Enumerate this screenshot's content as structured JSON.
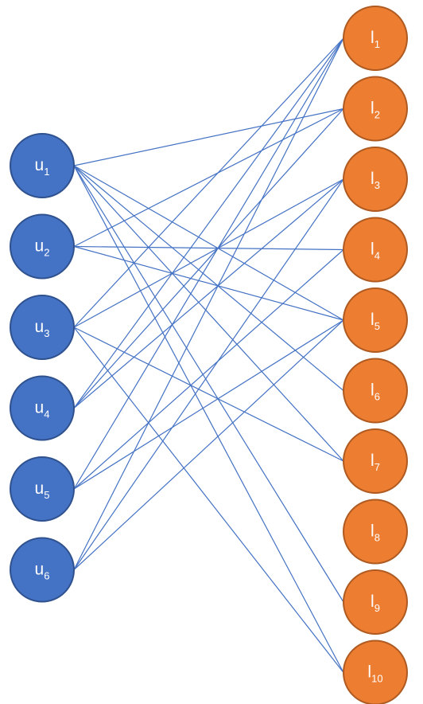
{
  "diagram": {
    "users": [
      {
        "id": "u1",
        "base": "u",
        "sub": "1"
      },
      {
        "id": "u2",
        "base": "u",
        "sub": "2"
      },
      {
        "id": "u3",
        "base": "u",
        "sub": "3"
      },
      {
        "id": "u4",
        "base": "u",
        "sub": "4"
      },
      {
        "id": "u5",
        "base": "u",
        "sub": "5"
      },
      {
        "id": "u6",
        "base": "u",
        "sub": "6"
      }
    ],
    "items": [
      {
        "id": "l1",
        "base": "l",
        "sub": "1"
      },
      {
        "id": "l2",
        "base": "l",
        "sub": "2"
      },
      {
        "id": "l3",
        "base": "l",
        "sub": "3"
      },
      {
        "id": "l4",
        "base": "l",
        "sub": "4"
      },
      {
        "id": "l5",
        "base": "l",
        "sub": "5"
      },
      {
        "id": "l6",
        "base": "l",
        "sub": "6"
      },
      {
        "id": "l7",
        "base": "l",
        "sub": "7"
      },
      {
        "id": "l8",
        "base": "l",
        "sub": "8"
      },
      {
        "id": "l9",
        "base": "l",
        "sub": "9"
      },
      {
        "id": "l10",
        "base": "l",
        "sub": "10"
      }
    ],
    "edges": [
      [
        "u1",
        "l2"
      ],
      [
        "u1",
        "l5"
      ],
      [
        "u1",
        "l6"
      ],
      [
        "u1",
        "l7"
      ],
      [
        "u1",
        "l9"
      ],
      [
        "u1",
        "l10"
      ],
      [
        "u2",
        "l2"
      ],
      [
        "u2",
        "l4"
      ],
      [
        "u2",
        "l5"
      ],
      [
        "u3",
        "l1"
      ],
      [
        "u3",
        "l3"
      ],
      [
        "u3",
        "l7"
      ],
      [
        "u3",
        "l10"
      ],
      [
        "u4",
        "l1"
      ],
      [
        "u4",
        "l2"
      ],
      [
        "u4",
        "l3"
      ],
      [
        "u5",
        "l1"
      ],
      [
        "u5",
        "l4"
      ],
      [
        "u5",
        "l5"
      ],
      [
        "u6",
        "l1"
      ],
      [
        "u6",
        "l3"
      ],
      [
        "u6",
        "l5"
      ]
    ],
    "colors": {
      "user_fill": "#4472c4",
      "user_stroke": "#2f528f",
      "item_fill": "#ed7d31",
      "item_stroke": "#ae5a21",
      "edge": "#4472c4",
      "label": "#ffffff"
    }
  }
}
